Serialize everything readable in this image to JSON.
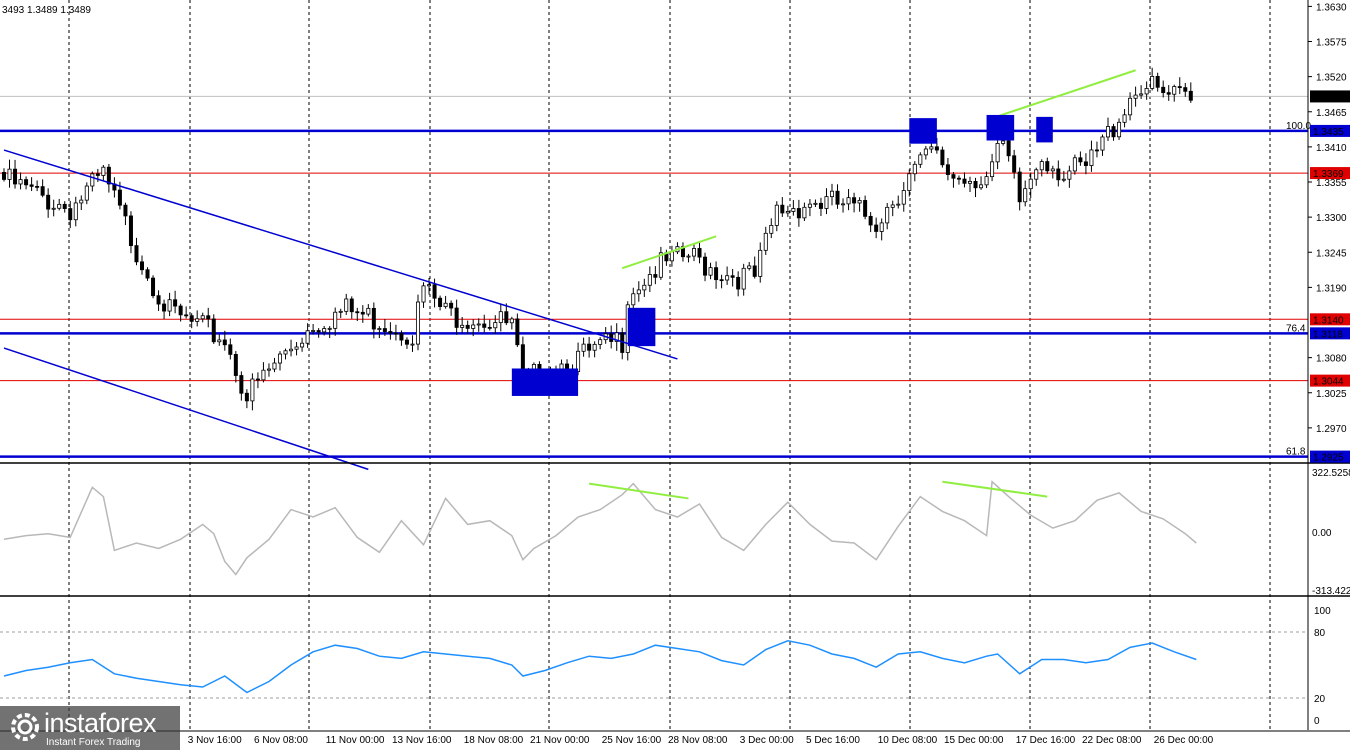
{
  "header": {
    "ohlc_text": "3493 1.3489 1.3489"
  },
  "logo": {
    "name": "instaforex",
    "tagline": "Instant Forex Trading"
  },
  "colors": {
    "candle": "#000000",
    "level_blue": "#0000d0",
    "level_red": "#e00000",
    "trend_green": "#90ee40",
    "cci_line": "#b8b8b8",
    "rsi_line": "#1e90ff"
  },
  "chart_data": [
    {
      "type": "candlestick",
      "ylim": [
        1.2915,
        1.364
      ],
      "y_ticks": [
        1.363,
        1.3575,
        1.352,
        1.3465,
        1.341,
        1.3355,
        1.33,
        1.3245,
        1.319,
        1.308,
        1.3025,
        1.297
      ],
      "x_labels": [
        "3 Nov 16:00",
        "6 Nov 08:00",
        "11 Nov 00:00",
        "13 Nov 16:00",
        "18 Nov 08:00",
        "21 Nov 00:00",
        "25 Nov 16:00",
        "28 Nov 08:00",
        "3 Dec 00:00",
        "5 Dec 16:00",
        "10 Dec 08:00",
        "15 Dec 00:00",
        "17 Dec 16:00",
        "22 Dec 08:00",
        "26 Dec 00:00"
      ],
      "x_label_at_bar": [
        38,
        50,
        63,
        75,
        88,
        100,
        113,
        125,
        138,
        150,
        163,
        175,
        188,
        200,
        213
      ],
      "last_price": 1.3489,
      "levels": [
        {
          "value": 1.3435,
          "label": "1.3435",
          "fib": "100.0",
          "color": "blue"
        },
        {
          "value": 1.3369,
          "label": "1.3369",
          "fib": "",
          "color": "red"
        },
        {
          "value": 1.314,
          "label": "1.3140",
          "fib": "",
          "color": "red"
        },
        {
          "value": 1.3118,
          "label": "1.3118",
          "fib": "76.4",
          "color": "blue"
        },
        {
          "value": 1.3044,
          "label": "1.3044",
          "fib": "",
          "color": "red"
        },
        {
          "value": 1.2925,
          "label": "1.2925",
          "fib": "61.8",
          "color": "blue"
        }
      ],
      "trendlines": [
        {
          "color": "blue",
          "from": [
            0,
            1.3405
          ],
          "to": [
            122,
            1.3078
          ]
        },
        {
          "color": "blue",
          "from": [
            0,
            1.3095
          ],
          "to": [
            66,
            1.2905
          ]
        },
        {
          "color": "green",
          "from": [
            112,
            1.322
          ],
          "to": [
            129,
            1.327
          ]
        },
        {
          "color": "green",
          "from": [
            179,
            1.3455
          ],
          "to": [
            205,
            1.353
          ]
        }
      ],
      "markers": [
        {
          "bar_from": 92,
          "bar_to": 104,
          "price_top": 1.3063,
          "price_bottom": 1.302
        },
        {
          "bar_from": 113,
          "bar_to": 118,
          "price_top": 1.3158,
          "price_bottom": 1.3098
        },
        {
          "bar_from": 164,
          "bar_to": 169,
          "price_top": 1.3455,
          "price_bottom": 1.3415
        },
        {
          "bar_from": 178,
          "bar_to": 183,
          "price_top": 1.346,
          "price_bottom": 1.342
        },
        {
          "bar_from": 187,
          "bar_to": 190,
          "price_top": 1.3457,
          "price_bottom": 1.3417
        }
      ],
      "anchors": [
        [
          0,
          1.337
        ],
        [
          6,
          1.3345
        ],
        [
          12,
          1.3325
        ],
        [
          18,
          1.3375
        ],
        [
          24,
          1.326
        ],
        [
          30,
          1.316
        ],
        [
          36,
          1.3135
        ],
        [
          40,
          1.312
        ],
        [
          44,
          1.303
        ],
        [
          50,
          1.309
        ],
        [
          56,
          1.3145
        ],
        [
          62,
          1.3165
        ],
        [
          68,
          1.315
        ],
        [
          74,
          1.313
        ],
        [
          76,
          1.32
        ],
        [
          80,
          1.316
        ],
        [
          86,
          1.3155
        ],
        [
          92,
          1.314
        ],
        [
          94,
          1.305
        ],
        [
          100,
          1.308
        ],
        [
          106,
          1.3095
        ],
        [
          112,
          1.312
        ],
        [
          113,
          1.3195
        ],
        [
          118,
          1.323
        ],
        [
          124,
          1.325
        ],
        [
          130,
          1.3225
        ],
        [
          136,
          1.3215
        ],
        [
          140,
          1.332
        ],
        [
          146,
          1.3335
        ],
        [
          152,
          1.333
        ],
        [
          158,
          1.3305
        ],
        [
          164,
          1.3375
        ],
        [
          168,
          1.341
        ],
        [
          172,
          1.3375
        ],
        [
          178,
          1.3375
        ],
        [
          181,
          1.342
        ],
        [
          184,
          1.3335
        ],
        [
          188,
          1.341
        ],
        [
          192,
          1.338
        ],
        [
          196,
          1.3385
        ],
        [
          200,
          1.344
        ],
        [
          204,
          1.35
        ],
        [
          206,
          1.352
        ],
        [
          210,
          1.35
        ],
        [
          214,
          1.3495
        ],
        [
          215,
          1.3489
        ]
      ]
    },
    {
      "type": "line",
      "name": "CCI",
      "ylim": [
        -313.4226,
        322.5258
      ],
      "y_tick_labels": [
        "322.5258",
        "0.00",
        "-313.4226"
      ],
      "y_ticks": [
        322.5258,
        0.0,
        -313.4226
      ],
      "x": [
        0,
        4,
        8,
        12,
        16,
        18,
        20,
        24,
        28,
        32,
        36,
        38,
        40,
        42,
        44,
        48,
        52,
        56,
        60,
        64,
        68,
        72,
        76,
        80,
        84,
        88,
        92,
        94,
        96,
        100,
        104,
        108,
        112,
        114,
        118,
        122,
        126,
        130,
        134,
        138,
        142,
        146,
        150,
        154,
        158,
        162,
        166,
        170,
        174,
        178,
        179,
        182,
        186,
        190,
        194,
        198,
        202,
        206,
        210,
        214,
        216
      ],
      "values": [
        -40,
        -20,
        -10,
        -30,
        240,
        190,
        -100,
        -60,
        -90,
        -40,
        40,
        -10,
        -160,
        -230,
        -140,
        -40,
        120,
        80,
        130,
        -30,
        -110,
        60,
        -70,
        180,
        40,
        60,
        -20,
        -150,
        -90,
        -20,
        80,
        120,
        200,
        260,
        120,
        80,
        150,
        -30,
        -100,
        40,
        160,
        40,
        -50,
        -60,
        -150,
        30,
        190,
        110,
        60,
        -20,
        270,
        190,
        90,
        20,
        60,
        170,
        210,
        110,
        70,
        -10,
        -60
      ]
    },
    {
      "type": "line",
      "name": "RSI",
      "ylim": [
        0,
        100
      ],
      "y_ticks": [
        100,
        80,
        20,
        0
      ],
      "x": [
        0,
        4,
        8,
        12,
        16,
        20,
        24,
        28,
        32,
        36,
        40,
        44,
        48,
        52,
        56,
        60,
        64,
        68,
        72,
        76,
        80,
        84,
        88,
        92,
        94,
        98,
        102,
        106,
        110,
        114,
        118,
        122,
        126,
        130,
        134,
        138,
        142,
        146,
        150,
        154,
        158,
        162,
        166,
        170,
        174,
        178,
        180,
        184,
        188,
        192,
        196,
        200,
        204,
        208,
        212,
        216
      ],
      "values": [
        40,
        45,
        48,
        52,
        55,
        42,
        38,
        35,
        32,
        30,
        40,
        25,
        35,
        50,
        62,
        68,
        65,
        58,
        56,
        62,
        60,
        58,
        56,
        50,
        40,
        45,
        52,
        58,
        56,
        60,
        68,
        65,
        62,
        54,
        50,
        64,
        72,
        68,
        60,
        56,
        48,
        60,
        62,
        56,
        52,
        58,
        60,
        42,
        55,
        55,
        52,
        55,
        66,
        70,
        62,
        55
      ]
    }
  ]
}
